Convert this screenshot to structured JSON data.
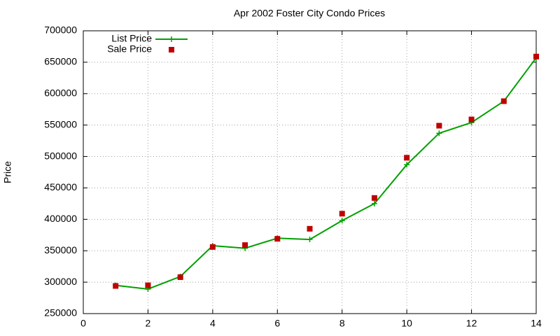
{
  "chart_data": {
    "type": "line",
    "title": "Apr 2002 Foster City Condo Prices",
    "y_label": "Price",
    "x": [
      1,
      2,
      3,
      4,
      5,
      6,
      7,
      8,
      9,
      10,
      11,
      12,
      13,
      14
    ],
    "series": [
      {
        "name": "List Price",
        "color": "#00a000",
        "mode": "lines+markers",
        "values": [
          295000,
          289000,
          309000,
          358000,
          354000,
          370000,
          368000,
          398000,
          425000,
          487000,
          537000,
          554000,
          588000,
          657000
        ]
      },
      {
        "name": "Sale Price",
        "color": "#c00000",
        "mode": "markers",
        "values": [
          294000,
          295000,
          308000,
          356000,
          359000,
          369000,
          385000,
          409000,
          434000,
          498000,
          549000,
          559000,
          588000,
          659000
        ]
      }
    ],
    "xlim": [
      0,
      14
    ],
    "xticks": [
      0,
      2,
      4,
      6,
      8,
      10,
      12,
      14
    ],
    "ylim": [
      250000,
      700000
    ],
    "yticks": [
      250000,
      300000,
      350000,
      400000,
      450000,
      500000,
      550000,
      600000,
      650000,
      700000
    ],
    "grid": true,
    "legend": "top-left"
  }
}
